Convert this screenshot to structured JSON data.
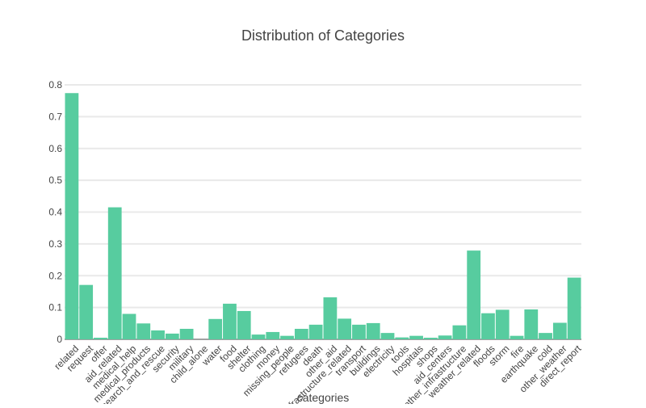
{
  "chart_data": {
    "type": "bar",
    "title": "Distribution of Categories",
    "xlabel": "categories",
    "ylabel": "",
    "ylim": [
      0,
      0.8
    ],
    "yticks": [
      "0",
      "0.1",
      "0.2",
      "0.3",
      "0.4",
      "0.5",
      "0.6",
      "0.7",
      "0.8"
    ],
    "grid": true,
    "bar_color": "#57cc9f",
    "categories": [
      "related",
      "request",
      "offer",
      "aid_related",
      "medical_help",
      "medical_products",
      "search_and_rescue",
      "security",
      "military",
      "child_alone",
      "water",
      "food",
      "shelter",
      "clothing",
      "money",
      "missing_people",
      "refugees",
      "death",
      "other_aid",
      "infrastructure_related",
      "transport",
      "buildings",
      "electricity",
      "tools",
      "hospitals",
      "shops",
      "aid_centers",
      "other_infrastructure",
      "weather_related",
      "floods",
      "storm",
      "fire",
      "earthquake",
      "cold",
      "other_weather",
      "direct_report"
    ],
    "values": [
      0.774,
      0.171,
      0.005,
      0.415,
      0.08,
      0.05,
      0.028,
      0.018,
      0.033,
      0.0,
      0.064,
      0.112,
      0.089,
      0.015,
      0.023,
      0.011,
      0.033,
      0.046,
      0.132,
      0.065,
      0.046,
      0.051,
      0.02,
      0.006,
      0.011,
      0.005,
      0.012,
      0.044,
      0.279,
      0.082,
      0.093,
      0.011,
      0.094,
      0.02,
      0.052,
      0.194
    ]
  }
}
